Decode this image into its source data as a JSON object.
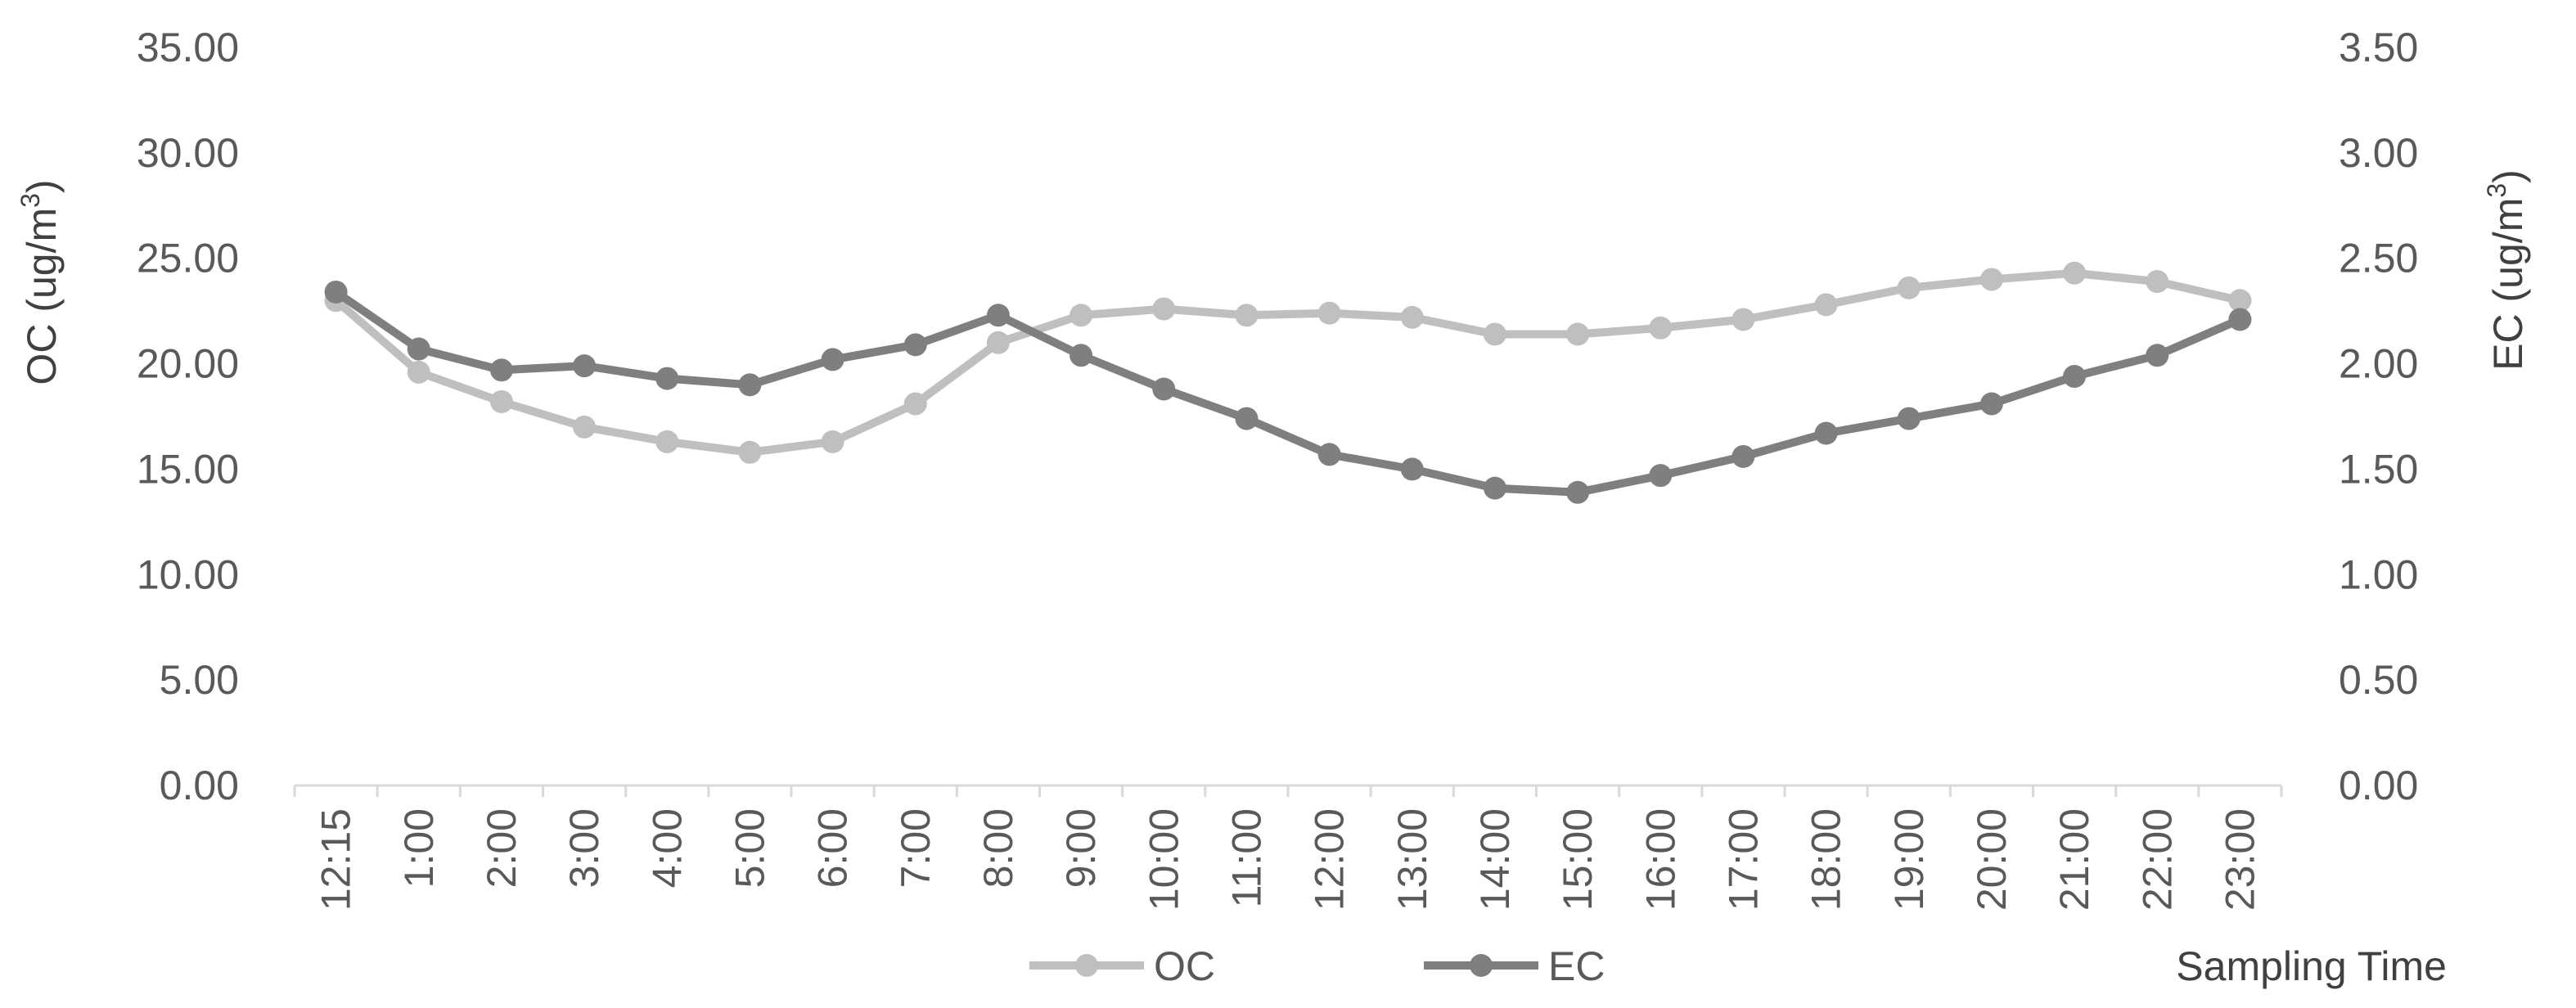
{
  "chart_data": {
    "type": "line",
    "categories": [
      "12:15",
      "1:00",
      "2:00",
      "3:00",
      "4:00",
      "5:00",
      "6:00",
      "7:00",
      "8:00",
      "9:00",
      "10:00",
      "11:00",
      "12:00",
      "13:00",
      "14:00",
      "15:00",
      "16:00",
      "17:00",
      "18:00",
      "19:00",
      "20:00",
      "21:00",
      "22:00",
      "23:00"
    ],
    "series": [
      {
        "name": "OC",
        "axis": "left",
        "color": "#bfbfbf",
        "values": [
          23.0,
          19.6,
          18.2,
          17.0,
          16.3,
          15.8,
          16.3,
          18.1,
          21.0,
          22.3,
          22.6,
          22.3,
          22.4,
          22.2,
          21.4,
          21.4,
          21.7,
          22.1,
          22.8,
          23.6,
          24.0,
          24.3,
          23.9,
          23.0
        ]
      },
      {
        "name": "EC",
        "axis": "right",
        "color": "#7f7f7f",
        "values": [
          2.34,
          2.07,
          1.97,
          1.99,
          1.93,
          1.9,
          2.02,
          2.09,
          2.23,
          2.04,
          1.88,
          1.74,
          1.57,
          1.5,
          1.41,
          1.39,
          1.47,
          1.56,
          1.67,
          1.74,
          1.81,
          1.94,
          2.04,
          2.21
        ]
      }
    ],
    "y_left": {
      "label_main": "OC (ug/m",
      "label_sup": "3",
      "label_end": ")",
      "ylim": [
        0,
        35
      ],
      "ticks": [
        "0.00",
        "5.00",
        "10.00",
        "15.00",
        "20.00",
        "25.00",
        "30.00",
        "35.00"
      ]
    },
    "y_right": {
      "label_main": "EC (ug/m",
      "label_sup": "3",
      "label_end": ")",
      "ylim": [
        0,
        3.5
      ],
      "ticks": [
        "0.00",
        "0.50",
        "1.00",
        "1.50",
        "2.00",
        "2.50",
        "3.00",
        "3.50"
      ]
    },
    "xlabel": "Sampling Time",
    "grid": false,
    "legend_position": "bottom"
  }
}
